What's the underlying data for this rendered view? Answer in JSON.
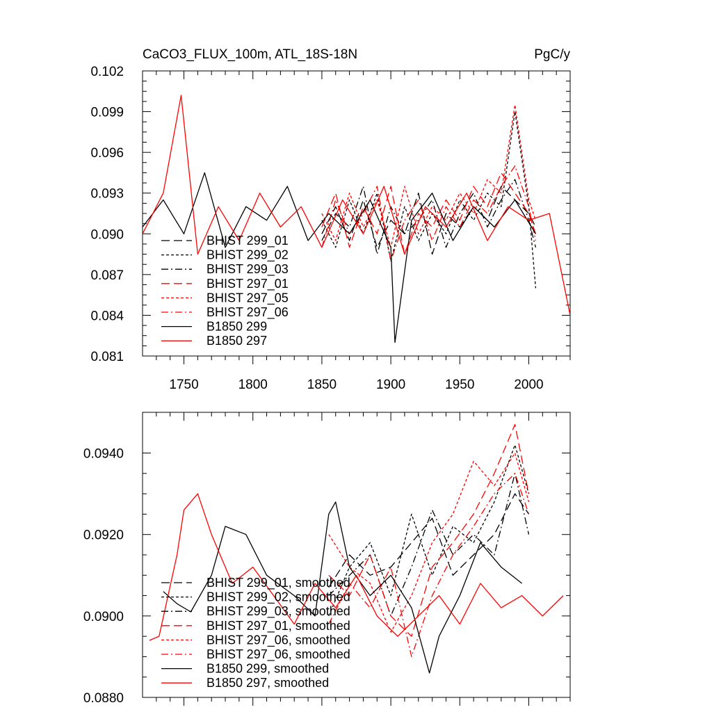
{
  "chart_data": [
    {
      "type": "line",
      "title_left": "CaCO3_FLUX_100m, ATL_18S-18N",
      "title_right": "PgC/y",
      "xlabel": "",
      "ylabel": "",
      "xlim": [
        1720,
        2030
      ],
      "ylim": [
        0.081,
        0.102
      ],
      "xticks": [
        1750,
        1800,
        1850,
        1900,
        1950,
        2000
      ],
      "xtick_labels": [
        "1750",
        "1800",
        "1850",
        "1900",
        "1950",
        "2000"
      ],
      "yticks": [
        0.081,
        0.084,
        0.087,
        0.09,
        0.093,
        0.096,
        0.099,
        0.102
      ],
      "ytick_labels": [
        "0.081",
        "0.084",
        "0.087",
        "0.090",
        "0.093",
        "0.096",
        "0.099",
        "0.102"
      ],
      "legend_position": "lower-left",
      "series": [
        {
          "name": "BHIST 299_01",
          "color": "#000000",
          "dash": "long-dash",
          "x": [
            1850,
            1860,
            1870,
            1880,
            1890,
            1900,
            1910,
            1920,
            1930,
            1940,
            1950,
            1960,
            1970,
            1980,
            1990,
            2000,
            2005
          ],
          "values": [
            0.09,
            0.092,
            0.0895,
            0.0925,
            0.089,
            0.091,
            0.09,
            0.093,
            0.0885,
            0.0915,
            0.0905,
            0.092,
            0.091,
            0.0935,
            0.0925,
            0.0915,
            0.0905
          ]
        },
        {
          "name": "BHIST 299_02",
          "color": "#000000",
          "dash": "short-dash",
          "x": [
            1850,
            1860,
            1870,
            1880,
            1890,
            1900,
            1910,
            1920,
            1930,
            1940,
            1950,
            1960,
            1970,
            1980,
            1990,
            2000,
            2005
          ],
          "values": [
            0.091,
            0.089,
            0.0925,
            0.09,
            0.093,
            0.088,
            0.092,
            0.0895,
            0.0915,
            0.09,
            0.0925,
            0.091,
            0.093,
            0.092,
            0.099,
            0.092,
            0.086
          ]
        },
        {
          "name": "BHIST 299_03",
          "color": "#000000",
          "dash": "dash-dot",
          "x": [
            1850,
            1860,
            1870,
            1880,
            1890,
            1900,
            1910,
            1920,
            1930,
            1940,
            1950,
            1960,
            1970,
            1980,
            1990,
            2000,
            2005
          ],
          "values": [
            0.0895,
            0.0915,
            0.0905,
            0.0935,
            0.0885,
            0.092,
            0.09,
            0.091,
            0.0925,
            0.089,
            0.0915,
            0.093,
            0.0905,
            0.0925,
            0.094,
            0.091,
            0.089
          ]
        },
        {
          "name": "BHIST 297_01",
          "color": "#ff0000",
          "dash": "long-dash",
          "x": [
            1850,
            1860,
            1870,
            1880,
            1890,
            1900,
            1910,
            1920,
            1930,
            1940,
            1950,
            1960,
            1970,
            1980,
            1990,
            2000,
            2005
          ],
          "values": [
            0.0905,
            0.093,
            0.089,
            0.092,
            0.09,
            0.0935,
            0.0885,
            0.0915,
            0.0905,
            0.0925,
            0.091,
            0.0935,
            0.092,
            0.0945,
            0.093,
            0.0915,
            0.09
          ]
        },
        {
          "name": "BHIST 297_05",
          "color": "#ff0000",
          "dash": "short-dash",
          "x": [
            1850,
            1860,
            1870,
            1880,
            1890,
            1900,
            1910,
            1920,
            1930,
            1940,
            1950,
            1960,
            1970,
            1980,
            1990,
            2000,
            2005
          ],
          "values": [
            0.0915,
            0.0895,
            0.093,
            0.0905,
            0.0925,
            0.089,
            0.0935,
            0.09,
            0.092,
            0.091,
            0.093,
            0.0915,
            0.094,
            0.093,
            0.0995,
            0.0925,
            0.091
          ]
        },
        {
          "name": "BHIST 297_06",
          "color": "#ff0000",
          "dash": "dash-dot",
          "x": [
            1850,
            1860,
            1870,
            1880,
            1890,
            1900,
            1910,
            1920,
            1930,
            1940,
            1950,
            1960,
            1970,
            1980,
            1990,
            2000,
            2005
          ],
          "values": [
            0.089,
            0.0925,
            0.09,
            0.0915,
            0.0935,
            0.088,
            0.091,
            0.0925,
            0.0895,
            0.092,
            0.0905,
            0.0925,
            0.0915,
            0.0935,
            0.095,
            0.092,
            0.0895
          ]
        },
        {
          "name": "B1850 299",
          "color": "#000000",
          "dash": "solid",
          "x": [
            1720,
            1735,
            1750,
            1765,
            1780,
            1795,
            1810,
            1825,
            1840,
            1855,
            1870,
            1885,
            1900,
            1903,
            1915,
            1930,
            1945,
            1960,
            1975,
            1990,
            2005
          ],
          "values": [
            0.0905,
            0.0925,
            0.09,
            0.0945,
            0.089,
            0.092,
            0.091,
            0.0935,
            0.0895,
            0.0915,
            0.09,
            0.0925,
            0.089,
            0.082,
            0.091,
            0.093,
            0.0895,
            0.092,
            0.0905,
            0.0925,
            0.09
          ]
        },
        {
          "name": "B1850 297",
          "color": "#ff0000",
          "dash": "solid",
          "x": [
            1720,
            1735,
            1748,
            1760,
            1775,
            1790,
            1805,
            1820,
            1835,
            1850,
            1865,
            1880,
            1895,
            1910,
            1925,
            1940,
            1955,
            1970,
            1985,
            2000,
            2015,
            2030
          ],
          "values": [
            0.09,
            0.093,
            0.1002,
            0.0885,
            0.092,
            0.0895,
            0.093,
            0.0905,
            0.092,
            0.089,
            0.0925,
            0.09,
            0.0935,
            0.0885,
            0.092,
            0.0905,
            0.093,
            0.0895,
            0.092,
            0.091,
            0.0915,
            0.084
          ]
        }
      ]
    },
    {
      "type": "line",
      "title_left": "",
      "title_right": "",
      "xlabel": "",
      "ylabel": "",
      "xlim": [
        1720,
        2030
      ],
      "ylim": [
        0.088,
        0.095
      ],
      "xticks": [
        1750,
        1800,
        1850,
        1900,
        1950,
        2000
      ],
      "xtick_labels": [],
      "yticks": [
        0.088,
        0.09,
        0.092,
        0.094
      ],
      "ytick_labels": [
        "0.0880",
        "0.0900",
        "0.0920",
        "0.0940"
      ],
      "legend_position": "lower-left",
      "series": [
        {
          "name": "BHIST 299_01, smoothed",
          "color": "#000000",
          "dash": "long-dash",
          "x": [
            1855,
            1870,
            1885,
            1900,
            1915,
            1930,
            1945,
            1960,
            1975,
            1990,
            2000
          ],
          "values": [
            0.0907,
            0.0915,
            0.091,
            0.0912,
            0.0918,
            0.0924,
            0.091,
            0.0915,
            0.092,
            0.093,
            0.0925
          ]
        },
        {
          "name": "BHIST 299_02, smoothed",
          "color": "#000000",
          "dash": "short-dash",
          "x": [
            1855,
            1870,
            1885,
            1900,
            1915,
            1930,
            1945,
            1960,
            1975,
            1990,
            2000
          ],
          "values": [
            0.09,
            0.0912,
            0.0918,
            0.0905,
            0.0925,
            0.091,
            0.0922,
            0.0918,
            0.0928,
            0.0942,
            0.093
          ]
        },
        {
          "name": "BHIST 299_03, smoothed",
          "color": "#000000",
          "dash": "dash-dot",
          "x": [
            1855,
            1870,
            1885,
            1900,
            1915,
            1930,
            1945,
            1960,
            1975,
            1990,
            2000
          ],
          "values": [
            0.0905,
            0.091,
            0.0915,
            0.09,
            0.0912,
            0.0926,
            0.0915,
            0.092,
            0.0915,
            0.0935,
            0.092
          ]
        },
        {
          "name": "BHIST 297_01, smoothed",
          "color": "#ff0000",
          "dash": "long-dash",
          "x": [
            1855,
            1870,
            1885,
            1900,
            1915,
            1930,
            1945,
            1960,
            1975,
            1990,
            2000
          ],
          "values": [
            0.091,
            0.0905,
            0.0915,
            0.09,
            0.0895,
            0.0912,
            0.0918,
            0.0925,
            0.0935,
            0.0947,
            0.093
          ]
        },
        {
          "name": "BHIST 297_06, smoothed",
          "color": "#ff0000",
          "dash": "short-dash",
          "x": [
            1855,
            1870,
            1885,
            1900,
            1915,
            1930,
            1945,
            1960,
            1975,
            1990,
            2000
          ],
          "values": [
            0.092,
            0.0912,
            0.0908,
            0.0896,
            0.0905,
            0.0918,
            0.0925,
            0.0938,
            0.0932,
            0.094,
            0.0928
          ]
        },
        {
          "name": "BHIST 297_06, smoothed",
          "color": "#ff0000",
          "dash": "dash-dot",
          "x": [
            1855,
            1870,
            1885,
            1900,
            1915,
            1930,
            1945,
            1960,
            1975,
            1990,
            2000
          ],
          "values": [
            0.0898,
            0.0908,
            0.0902,
            0.0912,
            0.089,
            0.0905,
            0.0915,
            0.0922,
            0.093,
            0.0935,
            0.0925
          ]
        },
        {
          "name": "B1850 299, smoothed",
          "color": "#000000",
          "dash": "solid",
          "x": [
            1735,
            1745,
            1755,
            1770,
            1780,
            1795,
            1810,
            1830,
            1845,
            1855,
            1860,
            1870,
            1885,
            1900,
            1915,
            1928,
            1935,
            1950,
            1965,
            1980,
            1995
          ],
          "values": [
            0.0906,
            0.0903,
            0.0901,
            0.091,
            0.0922,
            0.092,
            0.091,
            0.0905,
            0.09,
            0.0925,
            0.0928,
            0.0912,
            0.0905,
            0.091,
            0.0902,
            0.0886,
            0.0895,
            0.0905,
            0.0918,
            0.0912,
            0.0908
          ]
        },
        {
          "name": "B1850 297, smoothed",
          "color": "#ff0000",
          "dash": "solid",
          "x": [
            1725,
            1732,
            1745,
            1750,
            1760,
            1770,
            1785,
            1800,
            1815,
            1830,
            1845,
            1860,
            1875,
            1890,
            1905,
            1920,
            1935,
            1950,
            1965,
            1980,
            1995,
            2010,
            2025
          ],
          "values": [
            0.0894,
            0.0895,
            0.0915,
            0.0926,
            0.093,
            0.092,
            0.0908,
            0.0912,
            0.0905,
            0.0898,
            0.0908,
            0.0902,
            0.091,
            0.09,
            0.0895,
            0.09,
            0.0905,
            0.0898,
            0.0908,
            0.0902,
            0.0905,
            0.09,
            0.0905
          ]
        }
      ]
    }
  ]
}
